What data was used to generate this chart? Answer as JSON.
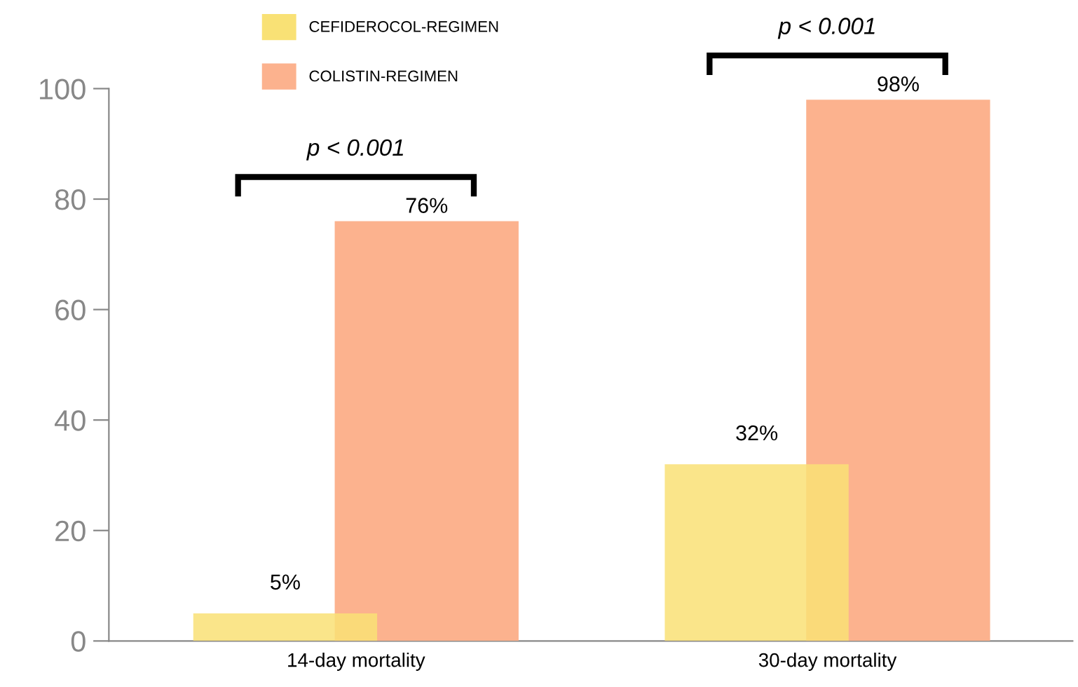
{
  "chart_data": {
    "type": "bar",
    "categories": [
      "14-day mortality",
      "30-day mortality"
    ],
    "series": [
      {
        "name": "CEFIDEROCOL-REGIMEN",
        "color": "#f9e175",
        "values": [
          5,
          32
        ],
        "value_labels": [
          "5%",
          "32%"
        ]
      },
      {
        "name": "COLISTIN-REGIMEN",
        "color": "#fcb28e",
        "values": [
          76,
          98
        ],
        "value_labels": [
          "76%",
          "98%"
        ]
      }
    ],
    "ylim": [
      0,
      100
    ],
    "yticks": [
      0,
      20,
      40,
      60,
      80,
      100
    ],
    "annotations": [
      "p < 0.001",
      "p < 0.001"
    ],
    "grid": false,
    "legend": "top"
  }
}
